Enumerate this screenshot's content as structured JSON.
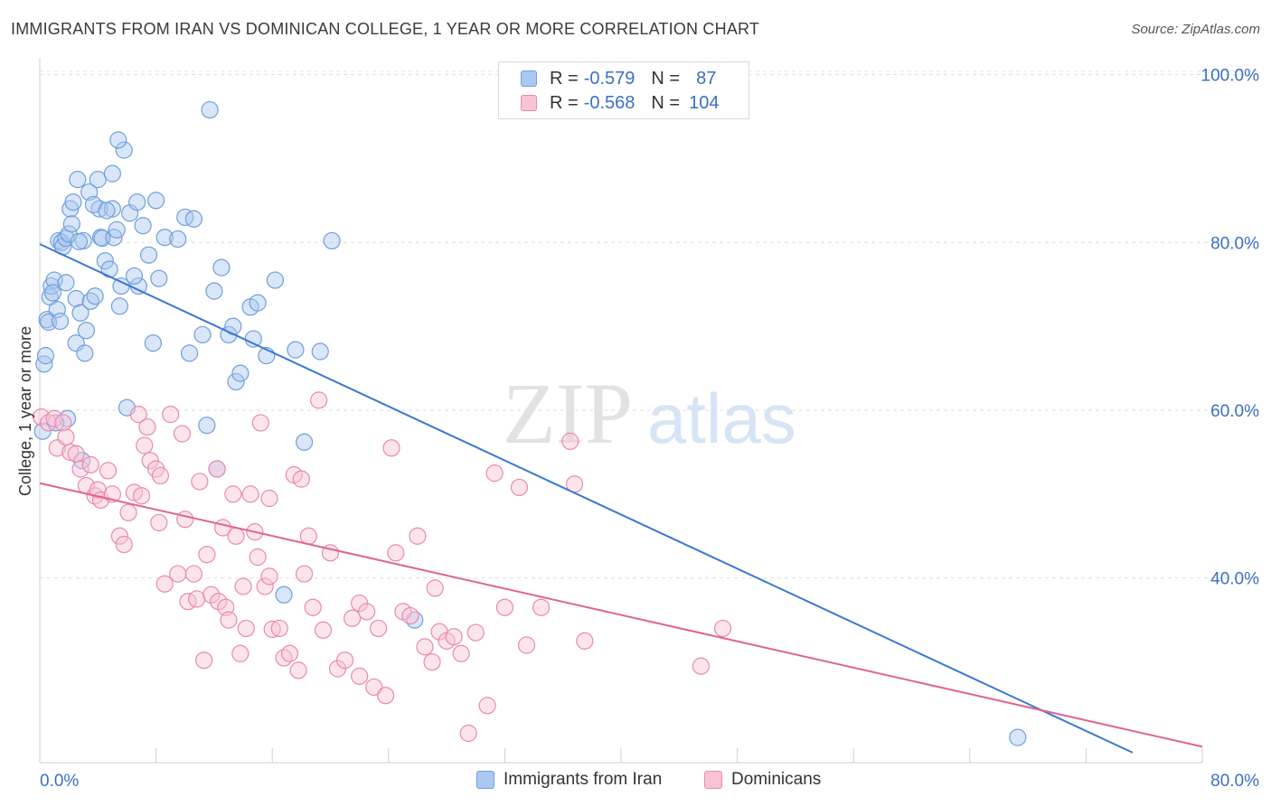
{
  "title": "IMMIGRANTS FROM IRAN VS DOMINICAN COLLEGE, 1 YEAR OR MORE CORRELATION CHART",
  "source": "Source: ZipAtlas.com",
  "watermark": {
    "zip": "ZIP",
    "atlas": "atlas"
  },
  "legend": {
    "rows": [
      {
        "r_label": "R =",
        "r_value": "-0.579",
        "n_label": "N =",
        "n_value": "87",
        "color": "#aac8f0",
        "border": "#6f9fdc"
      },
      {
        "r_label": "R =",
        "r_value": "-0.568",
        "n_label": "N =",
        "n_value": "104",
        "color": "#f8c3d4",
        "border": "#e98aab"
      }
    ]
  },
  "bottom_legend": [
    {
      "label": "Immigrants from Iran",
      "color": "#aac8f0",
      "border": "#6f9fdc"
    },
    {
      "label": "Dominicans",
      "color": "#f8c3d4",
      "border": "#e98aab"
    }
  ],
  "chart_data": {
    "type": "scatter",
    "title": "IMMIGRANTS FROM IRAN VS DOMINICAN COLLEGE, 1 YEAR OR MORE CORRELATION CHART",
    "xlabel": "",
    "ylabel": "College, 1 year or more",
    "xlim": [
      0,
      80
    ],
    "ylim": [
      18,
      102
    ],
    "x_tick_labels": [
      "0.0%",
      "80.0%"
    ],
    "y_ticks": [
      40,
      60,
      80,
      100
    ],
    "y_tick_labels": [
      "40.0%",
      "60.0%",
      "80.0%",
      "100.0%"
    ],
    "grid": true,
    "legend_position": "top-center",
    "colors": {
      "iran": "#3a78d4",
      "dominicans": "#e0648c",
      "axis_text": "#3b6fc6"
    },
    "series": [
      {
        "name": "Immigrants from Iran",
        "color": "#3a78d4",
        "trend": {
          "x0": 0,
          "y0": 79.8,
          "x1": 75.2,
          "y1": 19.2
        },
        "points": [
          [
            0.2,
            57.5
          ],
          [
            0.3,
            65.5
          ],
          [
            0.4,
            66.5
          ],
          [
            0.5,
            70.8
          ],
          [
            0.6,
            70.5
          ],
          [
            0.7,
            73.5
          ],
          [
            0.8,
            74.8
          ],
          [
            1.0,
            75.5
          ],
          [
            1.2,
            72.0
          ],
          [
            1.3,
            80.2
          ],
          [
            1.5,
            80.0
          ],
          [
            1.6,
            79.5
          ],
          [
            1.8,
            80.5
          ],
          [
            1.8,
            75.2
          ],
          [
            2.0,
            81.0
          ],
          [
            2.1,
            84.0
          ],
          [
            2.2,
            82.2
          ],
          [
            2.3,
            84.8
          ],
          [
            2.5,
            73.3
          ],
          [
            2.5,
            68.0
          ],
          [
            2.6,
            87.5
          ],
          [
            2.8,
            71.6
          ],
          [
            3.0,
            80.2
          ],
          [
            3.1,
            66.8
          ],
          [
            3.2,
            69.5
          ],
          [
            3.4,
            86.0
          ],
          [
            3.5,
            73.0
          ],
          [
            3.8,
            73.6
          ],
          [
            4.0,
            87.5
          ],
          [
            4.1,
            84.0
          ],
          [
            4.2,
            80.6
          ],
          [
            4.3,
            80.5
          ],
          [
            4.5,
            77.8
          ],
          [
            4.8,
            76.8
          ],
          [
            5.0,
            88.2
          ],
          [
            5.0,
            84.0
          ],
          [
            5.1,
            80.6
          ],
          [
            5.3,
            81.5
          ],
          [
            5.5,
            72.4
          ],
          [
            5.6,
            74.8
          ],
          [
            5.8,
            91.0
          ],
          [
            6.0,
            60.3
          ],
          [
            6.2,
            83.5
          ],
          [
            6.7,
            84.8
          ],
          [
            6.8,
            74.8
          ],
          [
            7.1,
            82.0
          ],
          [
            7.5,
            78.5
          ],
          [
            7.8,
            68.0
          ],
          [
            8.0,
            85.0
          ],
          [
            8.2,
            75.7
          ],
          [
            8.6,
            80.6
          ],
          [
            9.5,
            80.4
          ],
          [
            10.0,
            83.0
          ],
          [
            10.3,
            66.8
          ],
          [
            10.6,
            82.8
          ],
          [
            11.2,
            69.0
          ],
          [
            11.5,
            58.2
          ],
          [
            11.7,
            95.8
          ],
          [
            12.0,
            74.2
          ],
          [
            12.2,
            53.0
          ],
          [
            12.5,
            77.0
          ],
          [
            13.0,
            69.0
          ],
          [
            13.3,
            70.0
          ],
          [
            13.5,
            63.4
          ],
          [
            13.8,
            64.4
          ],
          [
            14.5,
            72.3
          ],
          [
            14.7,
            68.5
          ],
          [
            15.0,
            72.8
          ],
          [
            15.6,
            66.5
          ],
          [
            16.2,
            75.5
          ],
          [
            16.8,
            38.0
          ],
          [
            17.6,
            67.2
          ],
          [
            18.2,
            56.2
          ],
          [
            19.3,
            67.0
          ],
          [
            20.1,
            80.2
          ],
          [
            25.8,
            35.0
          ],
          [
            67.3,
            21.0
          ],
          [
            5.4,
            92.2
          ],
          [
            1.9,
            59.0
          ],
          [
            2.9,
            54.0
          ],
          [
            3.7,
            84.5
          ],
          [
            4.6,
            83.8
          ],
          [
            0.9,
            74.0
          ],
          [
            1.1,
            58.5
          ],
          [
            1.4,
            70.6
          ],
          [
            2.7,
            80.1
          ],
          [
            6.5,
            76.0
          ]
        ]
      },
      {
        "name": "Dominicans",
        "color": "#e0648c",
        "trend": {
          "x0": 0,
          "y0": 51.3,
          "x1": 80,
          "y1": 19.9
        },
        "points": [
          [
            0.1,
            59.2
          ],
          [
            0.6,
            58.5
          ],
          [
            1.0,
            59.0
          ],
          [
            1.2,
            55.5
          ],
          [
            1.6,
            58.5
          ],
          [
            1.8,
            56.8
          ],
          [
            2.1,
            55.0
          ],
          [
            2.5,
            54.8
          ],
          [
            2.8,
            53.0
          ],
          [
            3.2,
            51.0
          ],
          [
            3.5,
            53.5
          ],
          [
            3.8,
            49.8
          ],
          [
            4.0,
            50.5
          ],
          [
            4.2,
            49.3
          ],
          [
            4.7,
            52.8
          ],
          [
            5.0,
            50.0
          ],
          [
            5.5,
            45.0
          ],
          [
            5.8,
            44.0
          ],
          [
            6.1,
            47.8
          ],
          [
            6.5,
            50.2
          ],
          [
            6.8,
            59.5
          ],
          [
            7.0,
            49.8
          ],
          [
            7.2,
            55.8
          ],
          [
            7.6,
            54.0
          ],
          [
            8.0,
            53.0
          ],
          [
            8.2,
            46.6
          ],
          [
            8.3,
            52.2
          ],
          [
            8.6,
            39.3
          ],
          [
            9.0,
            59.5
          ],
          [
            9.5,
            40.5
          ],
          [
            10.0,
            47.0
          ],
          [
            10.2,
            37.2
          ],
          [
            10.6,
            40.5
          ],
          [
            10.8,
            37.5
          ],
          [
            11.0,
            51.5
          ],
          [
            11.3,
            30.2
          ],
          [
            11.5,
            42.8
          ],
          [
            11.8,
            38.0
          ],
          [
            12.2,
            53.0
          ],
          [
            12.3,
            37.2
          ],
          [
            12.6,
            46.0
          ],
          [
            12.8,
            36.5
          ],
          [
            13.0,
            35.0
          ],
          [
            13.3,
            50.0
          ],
          [
            13.5,
            45.0
          ],
          [
            13.8,
            31.0
          ],
          [
            14.0,
            39.0
          ],
          [
            14.2,
            34.0
          ],
          [
            14.5,
            50.0
          ],
          [
            14.8,
            45.5
          ],
          [
            15.0,
            42.5
          ],
          [
            15.2,
            58.5
          ],
          [
            15.5,
            39.0
          ],
          [
            15.8,
            49.5
          ],
          [
            16.0,
            33.9
          ],
          [
            16.5,
            34.0
          ],
          [
            16.8,
            30.5
          ],
          [
            17.2,
            31.0
          ],
          [
            17.5,
            52.3
          ],
          [
            17.8,
            29.0
          ],
          [
            18.0,
            51.8
          ],
          [
            18.5,
            45.0
          ],
          [
            18.8,
            36.5
          ],
          [
            19.2,
            61.2
          ],
          [
            19.5,
            33.8
          ],
          [
            20.0,
            43.0
          ],
          [
            20.5,
            29.2
          ],
          [
            21.0,
            30.2
          ],
          [
            21.5,
            35.2
          ],
          [
            22.0,
            37.0
          ],
          [
            22.5,
            36.0
          ],
          [
            23.0,
            27.0
          ],
          [
            23.3,
            34.0
          ],
          [
            23.8,
            26.0
          ],
          [
            24.2,
            55.5
          ],
          [
            24.5,
            43.0
          ],
          [
            25.0,
            36.0
          ],
          [
            25.5,
            35.5
          ],
          [
            26.0,
            45.0
          ],
          [
            26.5,
            31.8
          ],
          [
            27.0,
            30.0
          ],
          [
            27.5,
            33.6
          ],
          [
            28.0,
            32.5
          ],
          [
            28.5,
            33.0
          ],
          [
            29.0,
            31.0
          ],
          [
            29.5,
            21.5
          ],
          [
            30.0,
            33.5
          ],
          [
            30.8,
            24.8
          ],
          [
            31.3,
            52.5
          ],
          [
            32.0,
            36.5
          ],
          [
            33.0,
            50.8
          ],
          [
            34.5,
            36.5
          ],
          [
            36.5,
            56.3
          ],
          [
            36.8,
            51.2
          ],
          [
            37.5,
            32.5
          ],
          [
            45.5,
            29.5
          ],
          [
            47.0,
            34.0
          ],
          [
            33.5,
            32.0
          ],
          [
            22.0,
            28.3
          ],
          [
            18.2,
            40.5
          ],
          [
            7.4,
            58.0
          ],
          [
            9.8,
            57.2
          ],
          [
            27.2,
            38.8
          ],
          [
            15.8,
            40.2
          ]
        ]
      }
    ]
  }
}
